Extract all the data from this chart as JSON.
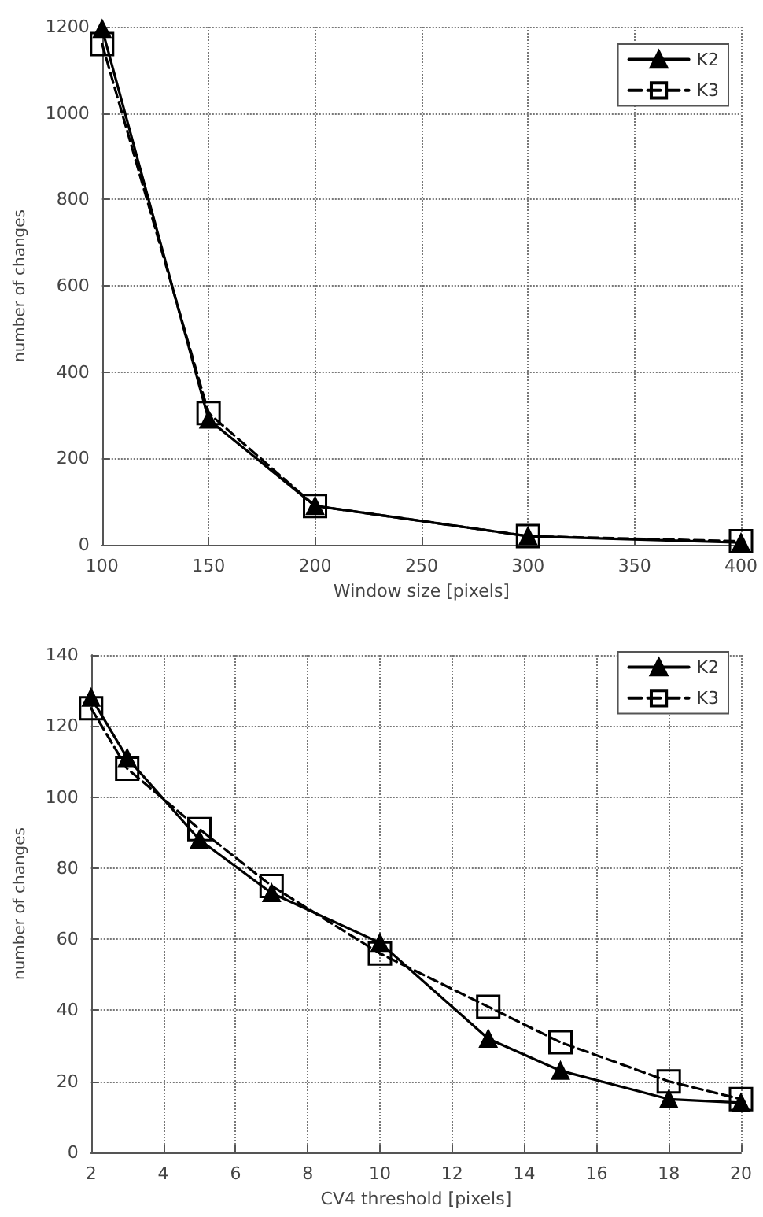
{
  "chart_data": [
    {
      "type": "line",
      "xlabel": "Window size [pixels]",
      "ylabel": "number of changes",
      "x": [
        100,
        150,
        200,
        300,
        400
      ],
      "series": [
        {
          "name": "K2",
          "color": "#000000",
          "marker": "triangle",
          "line_style": "solid",
          "values": [
            1195,
            290,
            90,
            20,
            5
          ]
        },
        {
          "name": "K3",
          "color": "#000000",
          "marker": "square",
          "line_style": "dashed",
          "values": [
            1160,
            305,
            90,
            20,
            8
          ]
        }
      ],
      "xlim": [
        100,
        400
      ],
      "xticks": [
        100,
        150,
        200,
        250,
        300,
        350,
        400
      ],
      "ylim": [
        0,
        1200
      ],
      "yticks": [
        0,
        200,
        400,
        600,
        800,
        1000,
        1200
      ],
      "grid": true,
      "legend": "top right"
    },
    {
      "type": "line",
      "xlabel": "CV4 threshold [pixels]",
      "ylabel": "number of changes",
      "x": [
        2,
        3,
        5,
        7,
        10,
        13,
        15,
        18,
        20
      ],
      "series": [
        {
          "name": "K2",
          "color": "#000000",
          "marker": "triangle",
          "line_style": "solid",
          "values": [
            128,
            111,
            88,
            73,
            59,
            32,
            23,
            15,
            14
          ]
        },
        {
          "name": "K3",
          "color": "#000000",
          "marker": "square",
          "line_style": "dashed",
          "values": [
            125,
            108,
            91,
            75,
            56,
            41,
            31,
            20,
            15
          ]
        }
      ],
      "xlim": [
        2,
        20
      ],
      "xticks": [
        2,
        4,
        6,
        8,
        10,
        12,
        14,
        16,
        18,
        20
      ],
      "ylim": [
        0,
        140
      ],
      "yticks": [
        0,
        20,
        40,
        60,
        80,
        100,
        120,
        140
      ],
      "grid": true,
      "legend": "top right"
    }
  ]
}
